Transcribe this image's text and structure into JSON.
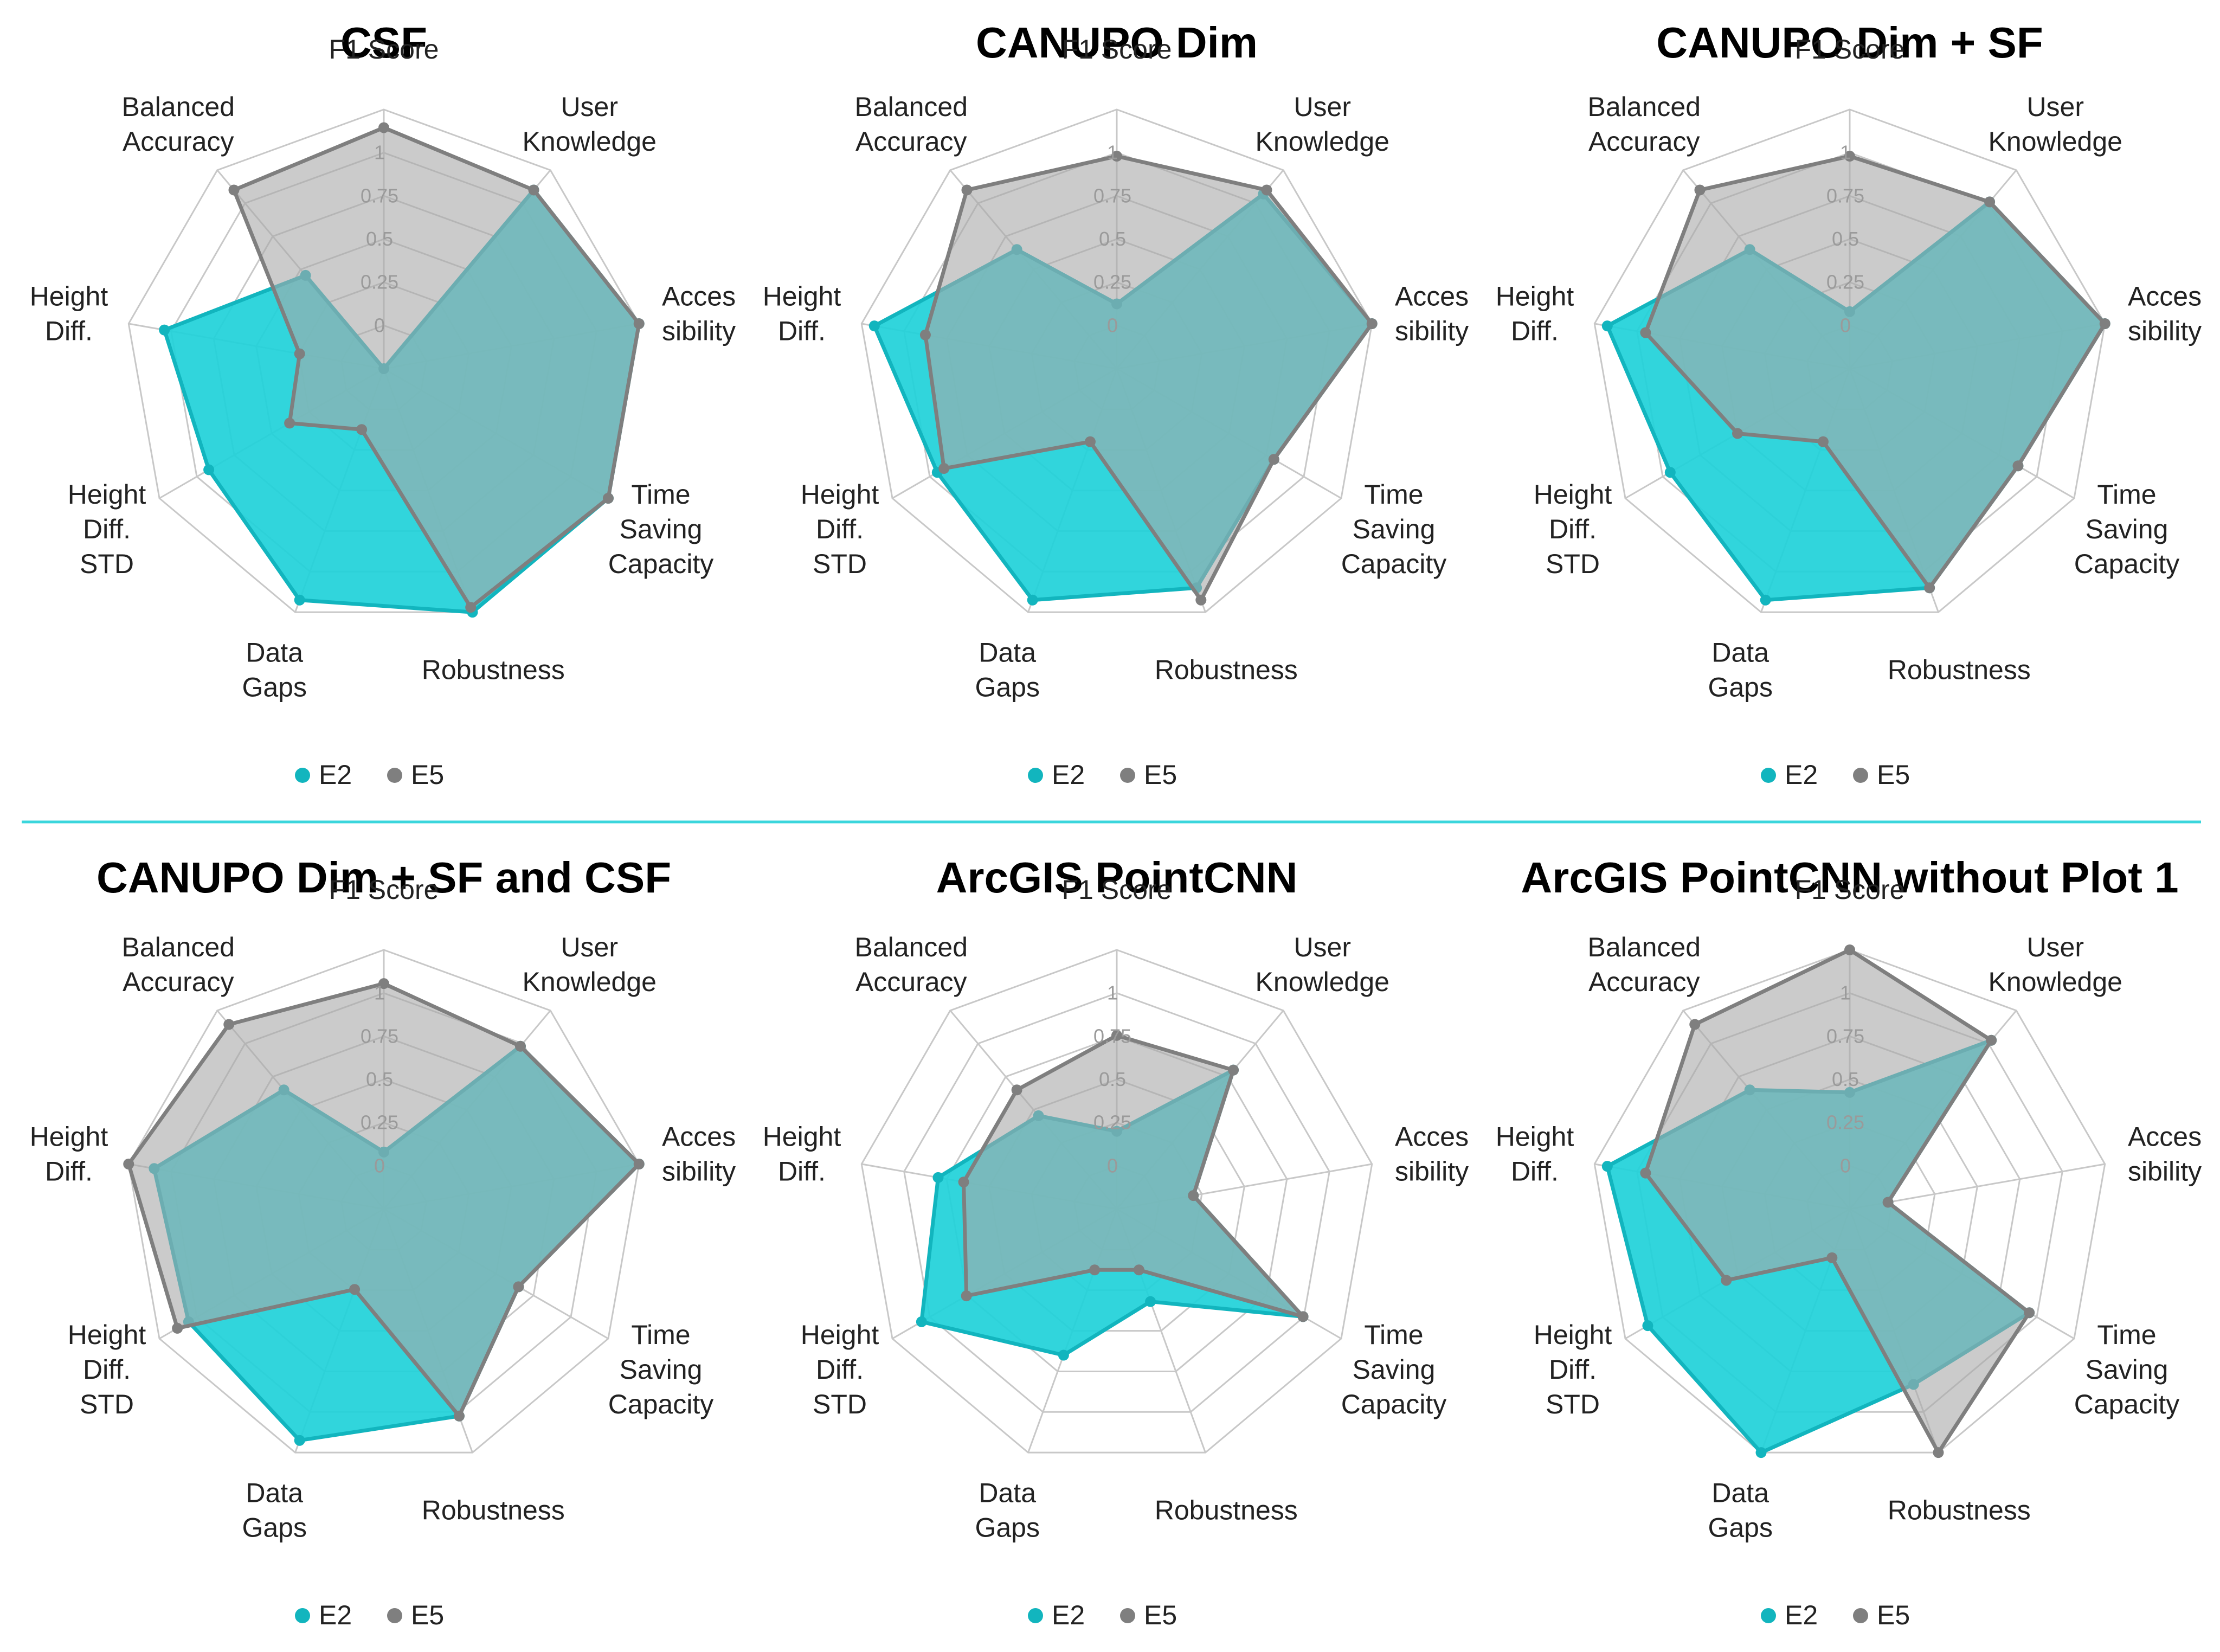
{
  "colors": {
    "E2": "#12b5be",
    "E2_fill": "#20d1d9",
    "E5": "#7f7f7f",
    "E5_fill": "#a9a9a9",
    "grid": "#c8c8c8",
    "divider": "#3ad6dc"
  },
  "chart_data": [
    {
      "type": "radar",
      "title": "CSF",
      "axes": [
        "F1 Score",
        "User Knowledge",
        "Accessibility",
        "Time Saving Capacity",
        "Robustness",
        "Data Gaps",
        "Height Diff. STD",
        "Height Diff.",
        "Balanced Accuracy"
      ],
      "axis_label_lines": [
        [
          "F1 Score"
        ],
        [
          "User",
          "Knowledge"
        ],
        [
          "Acces",
          "sibility"
        ],
        [
          "Time",
          "Saving",
          "Capacity"
        ],
        [
          "Robustness"
        ],
        [
          "Data",
          "Gaps"
        ],
        [
          "Height",
          "Diff.",
          "STD"
        ],
        [
          "Height",
          "Diff."
        ],
        [
          "Balanced",
          "Accuracy"
        ]
      ],
      "ticks": [
        "0",
        "0.25",
        "0.5",
        "0.75",
        "1"
      ],
      "range": [
        0,
        1
      ],
      "series": [
        {
          "name": "E2",
          "values": [
            0.0,
            0.9,
            1.0,
            1.0,
            1.0,
            0.95,
            0.78,
            0.86,
            0.47
          ]
        },
        {
          "name": "E5",
          "values": [
            0.93,
            0.9,
            1.0,
            1.0,
            0.98,
            0.25,
            0.42,
            0.33,
            0.9
          ]
        }
      ],
      "legend": [
        "E2",
        "E5"
      ]
    },
    {
      "type": "radar",
      "title": "CANUPO Dim",
      "axes": [
        "F1 Score",
        "User Knowledge",
        "Accessibility",
        "Time Saving Capacity",
        "Robustness",
        "Data Gaps",
        "Height Diff. STD",
        "Height Diff.",
        "Balanced Accuracy"
      ],
      "axis_label_lines": [
        [
          "F1 Score"
        ],
        [
          "User",
          "Knowledge"
        ],
        [
          "Acces",
          "sibility"
        ],
        [
          "Time",
          "Saving",
          "Capacity"
        ],
        [
          "Robustness"
        ],
        [
          "Data",
          "Gaps"
        ],
        [
          "Height",
          "Diff.",
          "STD"
        ],
        [
          "Height",
          "Diff."
        ],
        [
          "Balanced",
          "Accuracy"
        ]
      ],
      "ticks": [
        "0",
        "0.25",
        "0.5",
        "0.75",
        "1"
      ],
      "range": [
        0,
        1
      ],
      "series": [
        {
          "name": "E2",
          "values": [
            0.25,
            0.88,
            1.0,
            0.7,
            0.9,
            0.95,
            0.8,
            0.95,
            0.6
          ]
        },
        {
          "name": "E5",
          "values": [
            0.82,
            0.9,
            1.0,
            0.7,
            0.95,
            0.3,
            0.77,
            0.75,
            0.9
          ]
        }
      ],
      "legend": [
        "E2",
        "E5"
      ]
    },
    {
      "type": "radar",
      "title": "CANUPO Dim + SF",
      "axes": [
        "F1 Score",
        "User Knowledge",
        "Accessibility",
        "Time Saving Capacity",
        "Robustness",
        "Data Gaps",
        "Height Diff. STD",
        "Height Diff.",
        "Balanced Accuracy"
      ],
      "axis_label_lines": [
        [
          "F1 Score"
        ],
        [
          "User",
          "Knowledge"
        ],
        [
          "Acces",
          "sibility"
        ],
        [
          "Time",
          "Saving",
          "Capacity"
        ],
        [
          "Robustness"
        ],
        [
          "Data",
          "Gaps"
        ],
        [
          "Height",
          "Diff.",
          "STD"
        ],
        [
          "Height",
          "Diff."
        ],
        [
          "Balanced",
          "Accuracy"
        ]
      ],
      "ticks": [
        "0",
        "0.25",
        "0.5",
        "0.75",
        "1"
      ],
      "range": [
        0,
        1
      ],
      "series": [
        {
          "name": "E2",
          "values": [
            0.22,
            0.84,
            1.0,
            0.75,
            0.9,
            0.95,
            0.8,
            0.95,
            0.6
          ]
        },
        {
          "name": "E5",
          "values": [
            0.82,
            0.84,
            1.0,
            0.75,
            0.9,
            0.3,
            0.5,
            0.8,
            0.9
          ]
        }
      ],
      "legend": [
        "E2",
        "E5"
      ]
    },
    {
      "type": "radar",
      "title": "CANUPO Dim + SF and CSF",
      "axes": [
        "F1 Score",
        "User Knowledge",
        "Accessibility",
        "Time Saving Capacity",
        "Robustness",
        "Data Gaps",
        "Height Diff. STD",
        "Height Diff.",
        "Balanced Accuracy"
      ],
      "axis_label_lines": [
        [
          "F1 Score"
        ],
        [
          "User",
          "Knowledge"
        ],
        [
          "Acces",
          "sibility"
        ],
        [
          "Time",
          "Saving",
          "Capacity"
        ],
        [
          "Robustness"
        ],
        [
          "Data",
          "Gaps"
        ],
        [
          "Height",
          "Diff.",
          "STD"
        ],
        [
          "Height",
          "Diff."
        ],
        [
          "Balanced",
          "Accuracy"
        ]
      ],
      "ticks": [
        "0",
        "0.25",
        "0.5",
        "0.75",
        "1"
      ],
      "range": [
        0,
        1
      ],
      "series": [
        {
          "name": "E2",
          "values": [
            0.22,
            0.82,
            1.0,
            0.6,
            0.85,
            0.95,
            0.87,
            0.9,
            0.6
          ]
        },
        {
          "name": "E5",
          "values": [
            0.87,
            0.82,
            1.0,
            0.6,
            0.85,
            0.33,
            0.92,
            1.0,
            0.93
          ]
        }
      ],
      "legend": [
        "E2",
        "E5"
      ]
    },
    {
      "type": "radar",
      "title": "ArcGIS PointCNN",
      "axes": [
        "F1 Score",
        "User Knowledge",
        "Accessibility",
        "Time Saving Capacity",
        "Robustness",
        "Data Gaps",
        "Height Diff. STD",
        "Height Diff.",
        "Balanced Accuracy"
      ],
      "axis_label_lines": [
        [
          "F1 Score"
        ],
        [
          "User",
          "Knowledge"
        ],
        [
          "Acces",
          "sibility"
        ],
        [
          "Time",
          "Saving",
          "Capacity"
        ],
        [
          "Robustness"
        ],
        [
          "Data",
          "Gaps"
        ],
        [
          "Height",
          "Diff.",
          "STD"
        ],
        [
          "Height",
          "Diff."
        ],
        [
          "Balanced",
          "Accuracy"
        ]
      ],
      "ticks": [
        "0",
        "0.25",
        "0.5",
        "0.75",
        "1"
      ],
      "range": [
        0,
        1
      ],
      "series": [
        {
          "name": "E2",
          "values": [
            0.3,
            0.7,
            0.3,
            0.83,
            0.38,
            0.6,
            0.87,
            0.7,
            0.47
          ]
        },
        {
          "name": "E5",
          "values": [
            0.67,
            0.7,
            0.3,
            0.83,
            0.25,
            0.25,
            0.67,
            0.6,
            0.6
          ]
        }
      ],
      "legend": [
        "E2",
        "E5"
      ]
    },
    {
      "type": "radar",
      "title": "ArcGIS PointCNN without Plot 1",
      "axes": [
        "F1 Score",
        "User Knowledge",
        "Accessibility",
        "Time Saving Capacity",
        "Robustness",
        "Data Gaps",
        "Height Diff. STD",
        "Height Diff.",
        "Balanced Accuracy"
      ],
      "axis_label_lines": [
        [
          "F1 Score"
        ],
        [
          "User",
          "Knowledge"
        ],
        [
          "Acces",
          "sibility"
        ],
        [
          "Time",
          "Saving",
          "Capacity"
        ],
        [
          "Robustness"
        ],
        [
          "Data",
          "Gaps"
        ],
        [
          "Height",
          "Diff.",
          "STD"
        ],
        [
          "Height",
          "Diff."
        ],
        [
          "Balanced",
          "Accuracy"
        ]
      ],
      "ticks": [
        "0",
        "0.25",
        "0.5",
        "0.75",
        "1"
      ],
      "range": [
        0,
        1
      ],
      "series": [
        {
          "name": "E2",
          "values": [
            0.45,
            0.85,
            0.15,
            0.8,
            0.72,
            1.0,
            0.9,
            0.95,
            0.6
          ]
        },
        {
          "name": "E5",
          "values": [
            1.0,
            0.85,
            0.15,
            0.8,
            1.0,
            0.2,
            0.55,
            0.8,
            0.93
          ]
        }
      ],
      "legend": [
        "E2",
        "E5"
      ]
    }
  ]
}
